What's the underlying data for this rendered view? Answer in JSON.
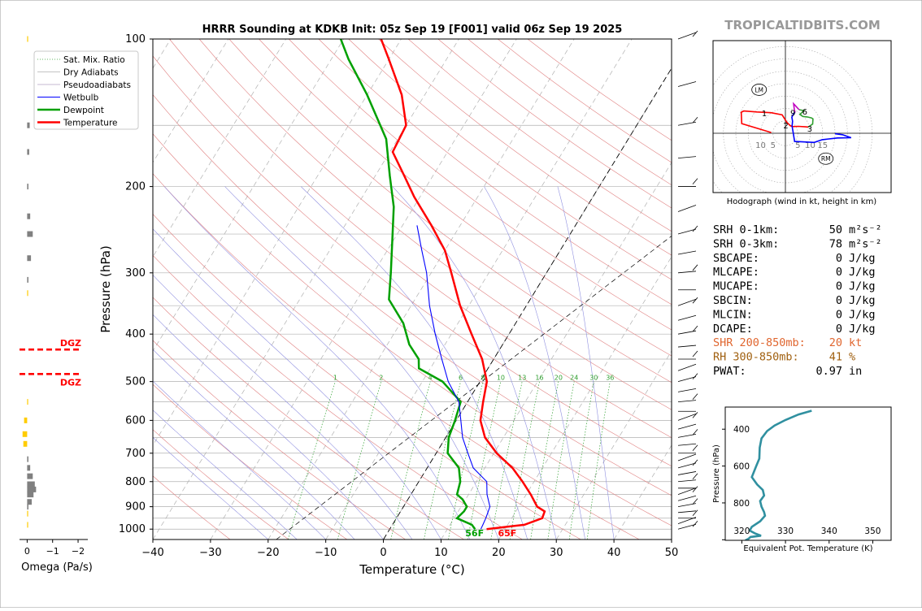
{
  "title": "HRRR Sounding at KDKB Init: 05z Sep 19 [F001] valid 06z Sep 19 2025",
  "brand": "TROPICALTIDBITS.COM",
  "colors": {
    "temp": "#ff0000",
    "dew": "#00a000",
    "wetbulb": "#0000ff",
    "grid": "#b0b0b0",
    "dry": "#e08080",
    "moist": "#9090e0",
    "mix": "#30a030",
    "hodo_red": "#ff0000",
    "hodo_mag": "#c000c0",
    "hodo_grn": "#30a030",
    "hodo_blu": "#0000ff",
    "thetae": "#3090a0",
    "dgz": "#ff0000",
    "omega_neg": "#808080",
    "omega_pos": "#ffcc00"
  },
  "chart_data": [
    {
      "type": "line",
      "name": "skewt",
      "xlabel": "Temperature (°C)",
      "ylabel": "Pressure (hPa)",
      "xlim": [
        -40,
        50
      ],
      "ylim": [
        1050,
        100
      ],
      "x_ticks": [
        -40,
        -30,
        -20,
        -10,
        0,
        10,
        20,
        30,
        40,
        50
      ],
      "y_ticks": [
        100,
        200,
        300,
        400,
        500,
        600,
        700,
        800,
        900,
        1000
      ],
      "skew_deg_per_decade": 52,
      "mix_ratio_labels": [
        "1",
        "2",
        "4",
        "6",
        "8",
        "10",
        "13",
        "16",
        "20",
        "24",
        "30",
        "36"
      ],
      "legend": [
        "Sat. Mix. Ratio",
        "Dry Adiabats",
        "Pseudoadiabats",
        "Wetbulb",
        "Dewpoint",
        "Temperature"
      ],
      "series": [
        {
          "name": "Temperature",
          "points": [
            [
              1000,
              16.8
            ],
            [
              980,
              22.9
            ],
            [
              950,
              25.3
            ],
            [
              920,
              25.0
            ],
            [
              900,
              23.2
            ],
            [
              850,
              20.8
            ],
            [
              800,
              18.0
            ],
            [
              750,
              14.8
            ],
            [
              700,
              10.5
            ],
            [
              650,
              6.8
            ],
            [
              600,
              4.2
            ],
            [
              550,
              2.7
            ],
            [
              500,
              1.2
            ],
            [
              450,
              -2.0
            ],
            [
              400,
              -6.5
            ],
            [
              350,
              -11.5
            ],
            [
              300,
              -16.5
            ],
            [
              270,
              -20.0
            ],
            [
              240,
              -25.0
            ],
            [
              210,
              -31.0
            ],
            [
              190,
              -35.0
            ],
            [
              170,
              -39.5
            ],
            [
              150,
              -40.0
            ],
            [
              130,
              -44.0
            ],
            [
              110,
              -50.0
            ],
            [
              100,
              -53.5
            ]
          ]
        },
        {
          "name": "Dewpoint",
          "points": [
            [
              1000,
              14.8
            ],
            [
              980,
              13.8
            ],
            [
              950,
              10.5
            ],
            [
              920,
              11.0
            ],
            [
              900,
              11.0
            ],
            [
              870,
              9.5
            ],
            [
              850,
              8.0
            ],
            [
              800,
              7.2
            ],
            [
              750,
              5.5
            ],
            [
              700,
              2.0
            ],
            [
              650,
              0.5
            ],
            [
              600,
              -0.2
            ],
            [
              550,
              -1.2
            ],
            [
              500,
              -6.5
            ],
            [
              470,
              -12.0
            ],
            [
              450,
              -13.0
            ],
            [
              420,
              -16.2
            ],
            [
              380,
              -19.5
            ],
            [
              340,
              -24.5
            ],
            [
              300,
              -27.0
            ],
            [
              260,
              -30.0
            ],
            [
              220,
              -33.5
            ],
            [
              190,
              -37.5
            ],
            [
              160,
              -42.0
            ],
            [
              130,
              -50.0
            ],
            [
              110,
              -57.0
            ],
            [
              100,
              -60.5
            ]
          ]
        },
        {
          "name": "Wetbulb",
          "points": [
            [
              1000,
              15.8
            ],
            [
              980,
              15.7
            ],
            [
              950,
              15.5
            ],
            [
              900,
              15.0
            ],
            [
              850,
              13.2
            ],
            [
              800,
              11.8
            ],
            [
              750,
              8.0
            ],
            [
              700,
              5.5
            ],
            [
              650,
              2.9
            ],
            [
              600,
              0.8
            ],
            [
              550,
              -1.5
            ],
            [
              500,
              -5.5
            ],
            [
              450,
              -9.0
            ],
            [
              400,
              -12.8
            ],
            [
              350,
              -16.8
            ],
            [
              300,
              -20.8
            ],
            [
              270,
              -24.0
            ],
            [
              240,
              -27.5
            ]
          ]
        }
      ],
      "annotations": {
        "surface_temp": "65F",
        "surface_dew": "56F"
      }
    },
    {
      "type": "line",
      "name": "hodograph",
      "caption": "Hodograph (wind in kt, height in km)",
      "ring_labels": [
        "10",
        "5",
        "5",
        "10",
        "15"
      ],
      "markers": [
        "LM",
        "RM"
      ],
      "height_labels": [
        {
          "t": "1",
          "u": -8.5,
          "v": 8.2
        },
        {
          "t": "2",
          "u": 0.2,
          "v": 3.3
        },
        {
          "t": "3",
          "u": 9.8,
          "v": 1.9
        },
        {
          "t": "6",
          "u": 7.8,
          "v": 8.9
        },
        {
          "t": "9",
          "u": 3.0,
          "v": 8.4
        }
      ],
      "segments": [
        {
          "color": "red",
          "points": [
            [
              -5.7,
              0.3
            ],
            [
              -17.6,
              3.9
            ],
            [
              -17.8,
              8.5
            ],
            [
              -16.8,
              9.0
            ],
            [
              -11.5,
              8.6
            ],
            [
              -5.8,
              8.3
            ],
            [
              -1.3,
              7.4
            ],
            [
              0.6,
              4.4
            ],
            [
              2.0,
              3.0
            ],
            [
              2.9,
              2.7
            ],
            [
              5.2,
              2.8
            ],
            [
              8.1,
              2.6
            ],
            [
              9.2,
              2.5
            ]
          ]
        },
        {
          "color": "green",
          "points": [
            [
              9.2,
              2.5
            ],
            [
              11.0,
              3.7
            ],
            [
              11.1,
              5.8
            ],
            [
              10.5,
              6.2
            ],
            [
              8.8,
              6.6
            ],
            [
              7.0,
              6.8
            ],
            [
              5.8,
              7.6
            ],
            [
              7.5,
              9.1
            ],
            [
              5.5,
              9.5
            ]
          ]
        },
        {
          "color": "magenta",
          "points": [
            [
              5.5,
              9.5
            ],
            [
              3.3,
              11.9
            ],
            [
              3.6,
              9.5
            ],
            [
              3.9,
              8.4
            ]
          ]
        },
        {
          "color": "blue",
          "points": [
            [
              3.9,
              8.4
            ],
            [
              3.4,
              8.1
            ],
            [
              2.6,
              6.5
            ],
            [
              2.9,
              4.9
            ],
            [
              2.7,
              2.9
            ],
            [
              3.2,
              -0.2
            ],
            [
              3.7,
              -3.3
            ],
            [
              6.2,
              -3.4
            ],
            [
              11.6,
              -3.7
            ],
            [
              14.9,
              -2.6
            ],
            [
              21.0,
              -1.9
            ],
            [
              26.5,
              -1.8
            ],
            [
              23.0,
              -0.6
            ],
            [
              20.0,
              -0.2
            ]
          ]
        }
      ],
      "lm_pos": [
        -10.6,
        18.3
      ],
      "rm_pos": [
        10.0,
        -6.4
      ]
    },
    {
      "type": "line",
      "name": "theta_e",
      "xlabel": "Equivalent Pot. Temperature (K)",
      "ylabel": "Pressure (hPa)",
      "xlim": [
        316.2,
        354.2
      ],
      "ylim": [
        1003,
        280
      ],
      "x_ticks": [
        320,
        330,
        340,
        350
      ],
      "y_ticks": [
        400,
        600,
        800
      ],
      "series": [
        {
          "name": "theta-e",
          "points": [
            [
              300,
              336.0
            ],
            [
              320,
              333.0
            ],
            [
              350,
              330.0
            ],
            [
              380,
              327.5
            ],
            [
              410,
              325.8
            ],
            [
              450,
              324.5
            ],
            [
              500,
              324.1
            ],
            [
              560,
              324.0
            ],
            [
              600,
              323.3
            ],
            [
              660,
              322.3
            ],
            [
              700,
              323.5
            ],
            [
              730,
              324.8
            ],
            [
              760,
              325.1
            ],
            [
              790,
              324.2
            ],
            [
              820,
              324.5
            ],
            [
              850,
              325.1
            ],
            [
              870,
              325.3
            ],
            [
              900,
              324.2
            ],
            [
              930,
              322.3
            ],
            [
              950,
              321.8
            ],
            [
              965,
              323.0
            ],
            [
              978,
              324.4
            ],
            [
              985,
              322.0
            ],
            [
              995,
              321.5
            ],
            [
              1003,
              320.8
            ]
          ]
        }
      ]
    },
    {
      "type": "bar",
      "name": "omega",
      "xlabel": "Omega (Pa/s)",
      "x_ticks": [
        "0",
        "−1",
        "−2"
      ],
      "xlim": [
        0.3,
        -2.35
      ],
      "dgz_label": "DGZ",
      "dgz_pressures": [
        440,
        490
      ],
      "values": [
        [
          100,
          0.0
        ],
        [
          150,
          -0.1
        ],
        [
          170,
          -0.08
        ],
        [
          200,
          -0.05
        ],
        [
          230,
          -0.12
        ],
        [
          250,
          -0.22
        ],
        [
          280,
          -0.15
        ],
        [
          310,
          -0.05
        ],
        [
          330,
          0.0
        ],
        [
          550,
          0.0
        ],
        [
          600,
          0.12
        ],
        [
          640,
          0.18
        ],
        [
          670,
          0.15
        ],
        [
          720,
          -0.05
        ],
        [
          750,
          -0.12
        ],
        [
          780,
          -0.22
        ],
        [
          810,
          -0.3
        ],
        [
          830,
          -0.35
        ],
        [
          850,
          -0.25
        ],
        [
          880,
          -0.18
        ],
        [
          900,
          -0.05
        ],
        [
          930,
          0.0
        ],
        [
          980,
          0.0
        ]
      ]
    }
  ],
  "indices": [
    {
      "k": "SRH 0-1km:",
      "v": "50",
      "u": "m²s⁻²",
      "color": "#000000"
    },
    {
      "k": "SRH 0-3km:",
      "v": "78",
      "u": "m²s⁻²",
      "color": "#000000"
    },
    {
      "k": "SBCAPE:",
      "v": "0",
      "u": "J/kg",
      "color": "#000000"
    },
    {
      "k": "MLCAPE:",
      "v": "0",
      "u": "J/kg",
      "color": "#000000"
    },
    {
      "k": "MUCAPE:",
      "v": "0",
      "u": "J/kg",
      "color": "#000000"
    },
    {
      "k": "SBCIN:",
      "v": "0",
      "u": "J/kg",
      "color": "#000000"
    },
    {
      "k": "MLCIN:",
      "v": "0",
      "u": "J/kg",
      "color": "#000000"
    },
    {
      "k": "DCAPE:",
      "v": "0",
      "u": "J/kg",
      "color": "#000000"
    },
    {
      "k": "SHR 200-850mb:",
      "v": "20",
      "u": "kt",
      "color": "#e0662f"
    },
    {
      "k": "RH 300-850mb:",
      "v": "41",
      "u": "%",
      "color": "#a06010"
    },
    {
      "k": "PWAT:",
      "v": "0.97",
      "u": "in",
      "color": "#000000"
    }
  ]
}
